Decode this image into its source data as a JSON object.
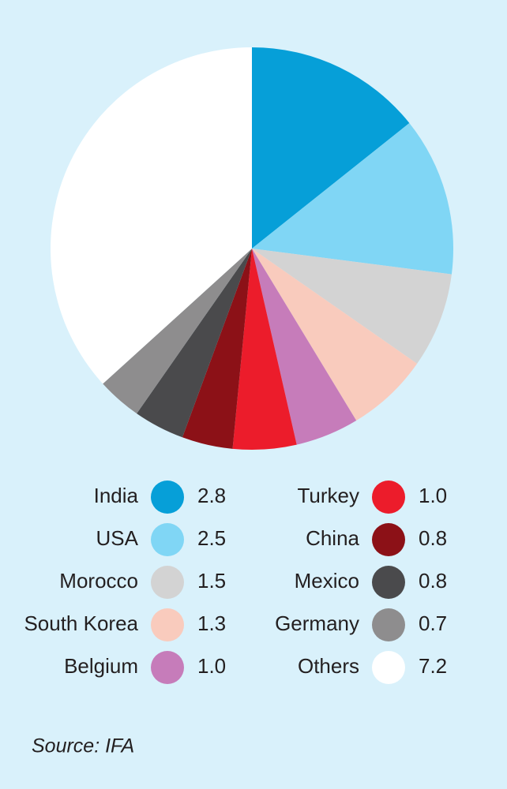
{
  "chart_data": {
    "type": "pie",
    "categories": [
      "India",
      "USA",
      "Morocco",
      "South Korea",
      "Belgium",
      "Turkey",
      "China",
      "Mexico",
      "Germany",
      "Others"
    ],
    "values": [
      2.8,
      2.5,
      1.5,
      1.3,
      1.0,
      1.0,
      0.8,
      0.8,
      0.7,
      7.2
    ],
    "value_labels": [
      "2.8",
      "2.5",
      "1.5",
      "1.3",
      "1.0",
      "1.0",
      "0.8",
      "0.8",
      "0.7",
      "7.2"
    ],
    "colors": [
      "#069fd8",
      "#80d6f5",
      "#d3d3d3",
      "#f9cbbd",
      "#c67cba",
      "#ec1c2b",
      "#8c1117",
      "#4a4a4c",
      "#8e8d8e",
      "#ffffff"
    ],
    "source": "Source: IFA"
  }
}
